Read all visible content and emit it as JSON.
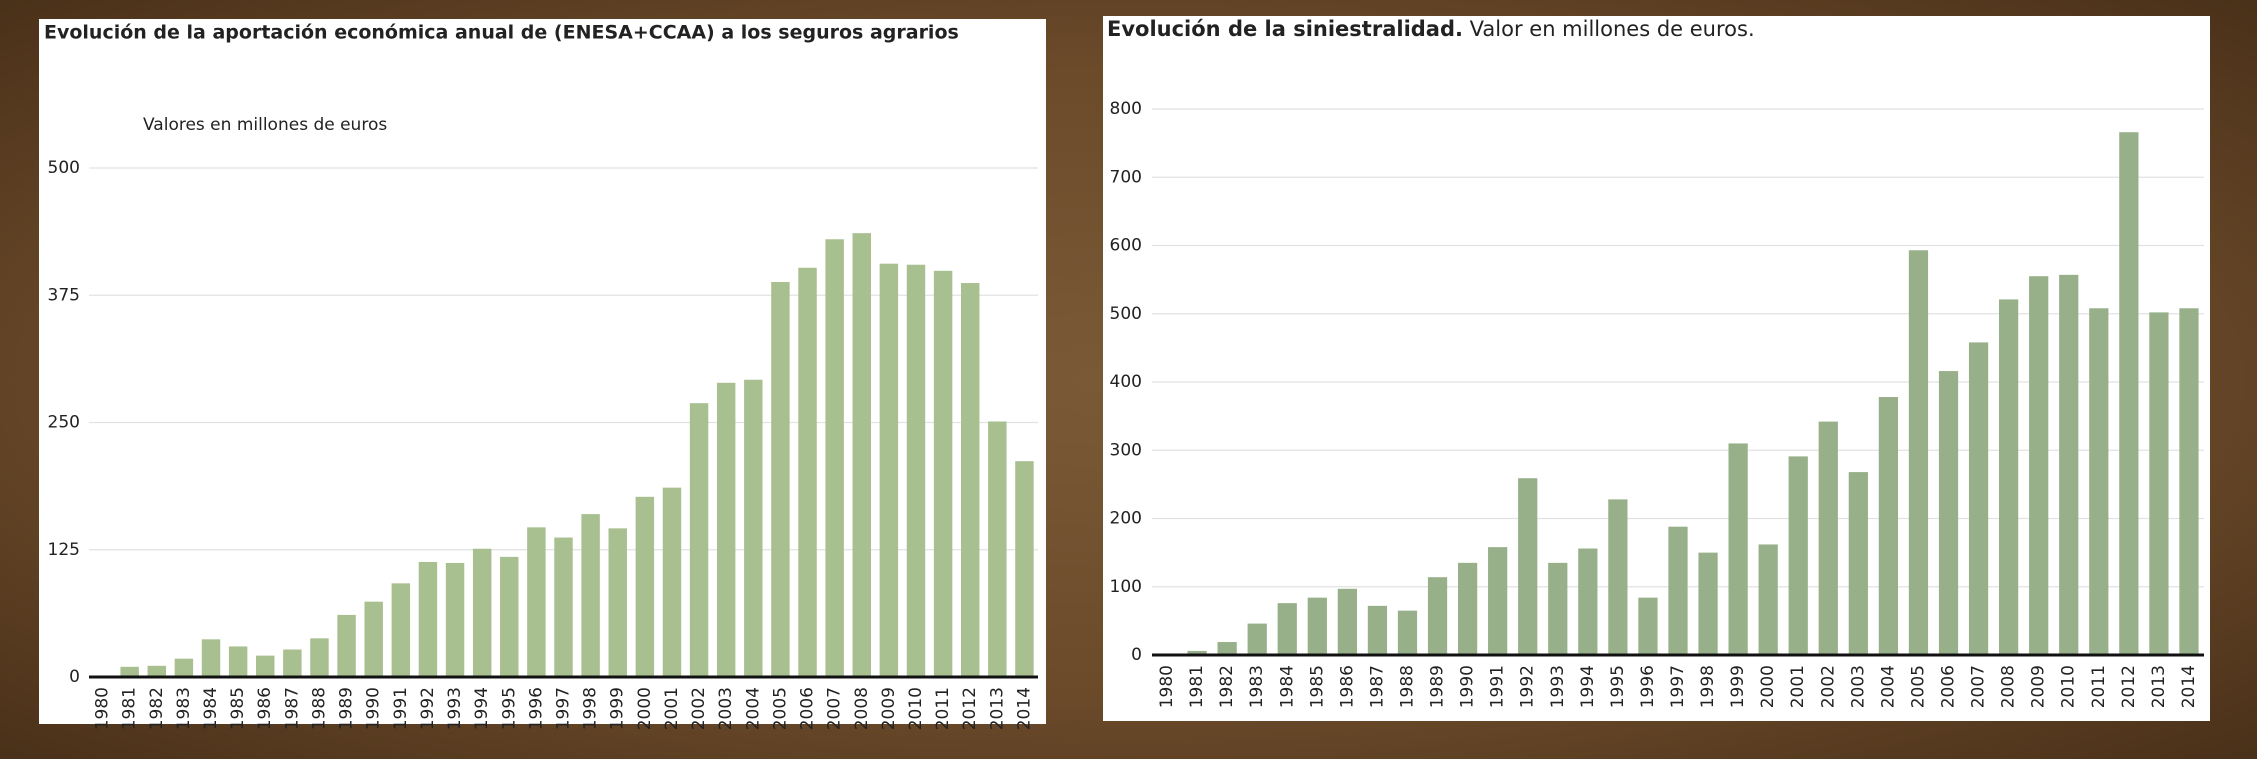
{
  "chart_data": [
    {
      "type": "bar",
      "title": "Evolución de la aportación económica anual de (ENESA+CCAA) a los seguros agrarios",
      "subtitle": "Valores en millones de euros",
      "categories": [
        "1980",
        "1981",
        "1982",
        "1983",
        "1984",
        "1985",
        "1986",
        "1987",
        "1988",
        "1989",
        "1990",
        "1991",
        "1992",
        "1993",
        "1994",
        "1995",
        "1996",
        "1997",
        "1998",
        "1999",
        "2000",
        "2001",
        "2002",
        "2003",
        "2004",
        "2005",
        "2006",
        "2007",
        "2008",
        "2009",
        "2010",
        "2011",
        "2012",
        "2013",
        "2014"
      ],
      "values": [
        0,
        10,
        11,
        18,
        37,
        30,
        21,
        27,
        38,
        61,
        74,
        92,
        113,
        112,
        126,
        118,
        147,
        137,
        160,
        146,
        177,
        186,
        269,
        289,
        292,
        388,
        402,
        430,
        436,
        406,
        405,
        399,
        387,
        251,
        212
      ],
      "color": "#a8bf8f",
      "ylim": [
        0,
        500
      ],
      "yticks": [
        0,
        125,
        250,
        375,
        500
      ],
      "grid": true
    },
    {
      "type": "bar",
      "title": "Evolución de la siniestralidad.",
      "subtitle": "Valor en millones de euros.",
      "categories": [
        "1980",
        "1981",
        "1982",
        "1983",
        "1984",
        "1985",
        "1986",
        "1987",
        "1988",
        "1989",
        "1990",
        "1991",
        "1992",
        "1993",
        "1994",
        "1995",
        "1996",
        "1997",
        "1998",
        "1999",
        "2000",
        "2001",
        "2002",
        "2003",
        "2004",
        "2005",
        "2006",
        "2007",
        "2008",
        "2009",
        "2010",
        "2011",
        "2012",
        "2013",
        "2014"
      ],
      "values": [
        0,
        6,
        19,
        46,
        76,
        84,
        97,
        72,
        65,
        114,
        135,
        158,
        259,
        135,
        156,
        228,
        84,
        188,
        150,
        310,
        162,
        291,
        342,
        268,
        378,
        593,
        416,
        458,
        521,
        555,
        557,
        508,
        766,
        502,
        508
      ],
      "color": "#97b08a",
      "ylim": [
        0,
        800
      ],
      "yticks": [
        0,
        100,
        200,
        300,
        400,
        500,
        600,
        700,
        800
      ],
      "grid": true
    }
  ]
}
